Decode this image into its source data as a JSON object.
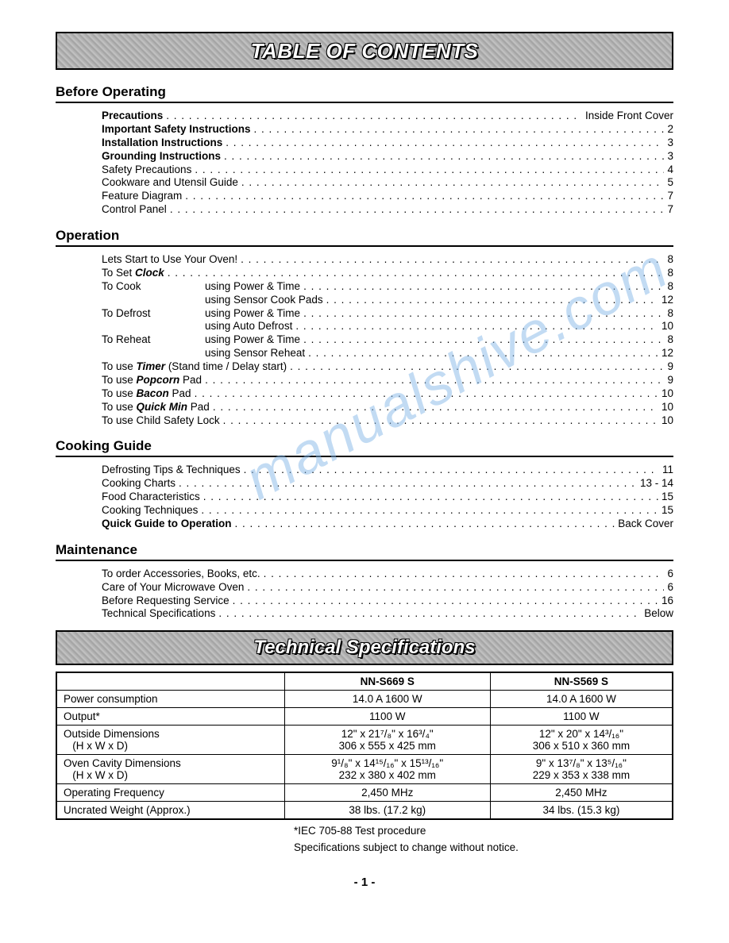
{
  "banners": {
    "toc": "TABLE OF CONTENTS",
    "spec": "Technical Specifications"
  },
  "watermark": "manualshive.com",
  "sections": {
    "before_operating": {
      "title": "Before Operating",
      "items": [
        {
          "label": "Precautions",
          "bold": true,
          "page": "Inside Front Cover"
        },
        {
          "label": "Important Safety Instructions",
          "bold": true,
          "page": "2"
        },
        {
          "label": "Installation Instructions",
          "bold": true,
          "page": "3"
        },
        {
          "label": "Grounding Instructions",
          "bold": true,
          "page": "3"
        },
        {
          "label": "Safety Precautions",
          "bold": false,
          "page": "4"
        },
        {
          "label": "Cookware and Utensil Guide",
          "bold": false,
          "page": "5"
        },
        {
          "label": "Feature Diagram",
          "bold": false,
          "page": "7"
        },
        {
          "label": "Control Panel",
          "bold": false,
          "page": "7"
        }
      ]
    },
    "operation": {
      "title": "Operation",
      "items": [
        {
          "label": "Lets Start to Use Your Oven!",
          "page": "8"
        },
        {
          "label_pre": "To Set ",
          "label_em": "Clock",
          "page": "8"
        },
        {
          "lead": "To Cook",
          "sub": "using Power & Time",
          "page": "8"
        },
        {
          "lead": "",
          "sub": "using Sensor Cook Pads",
          "page": "12"
        },
        {
          "lead": "To Defrost",
          "sub": "using Power & Time",
          "page": "8"
        },
        {
          "lead": "",
          "sub_pre": "using ",
          "sub_em": "Auto Defrost",
          "page": "10"
        },
        {
          "lead": "To Reheat",
          "sub": "using Power & Time",
          "page": "8"
        },
        {
          "lead": "",
          "sub_pre": "using ",
          "sub_em": "Sensor Reheat",
          "page": "12"
        },
        {
          "label_pre": "To use ",
          "label_em": "Timer",
          "label_post": " (Stand time / Delay start)",
          "page": "9"
        },
        {
          "label_pre": "To use ",
          "label_em": "Popcorn",
          "label_post": " Pad",
          "page": "9"
        },
        {
          "label_pre": "To use ",
          "label_em": "Bacon",
          "label_post": " Pad",
          "page": "10"
        },
        {
          "label_pre": "To use ",
          "label_em": "Quick Min",
          "label_post": " Pad",
          "page": "10"
        },
        {
          "label": "To use Child Safety Lock",
          "page": "10"
        }
      ]
    },
    "cooking_guide": {
      "title": "Cooking Guide",
      "items": [
        {
          "label": "Defrosting Tips & Techniques",
          "page": "11"
        },
        {
          "label": "Cooking Charts",
          "page": "13 - 14"
        },
        {
          "label": "Food Characteristics",
          "page": "15"
        },
        {
          "label": "Cooking Techniques",
          "page": "15"
        },
        {
          "label": "Quick Guide to Operation",
          "bold": true,
          "page": "Back Cover"
        }
      ]
    },
    "maintenance": {
      "title": "Maintenance",
      "items": [
        {
          "label": "To order Accessories, Books, etc.",
          "page": "6"
        },
        {
          "label": "Care of Your Microwave Oven",
          "page": "6"
        },
        {
          "label": "Before Requesting Service",
          "page": "16"
        },
        {
          "label": "Technical Specifications",
          "page": "Below"
        }
      ]
    }
  },
  "spec_table": {
    "models": [
      "NN-S669 S",
      "NN-S569 S"
    ],
    "rows": [
      {
        "label": "Power consumption",
        "a": "14.0 A  1600 W",
        "b": "14.0 A  1600 W"
      },
      {
        "label": "Output*",
        "a": "1100 W",
        "b": "1100 W"
      },
      {
        "label": "Outside Dimensions",
        "label2": "(H x W x D)",
        "a": "12\" x 21⁷/₈\" x 16³/₄\"",
        "a2": "306 x 555 x 425 mm",
        "b": "12\" x 20\" x 14³/₁₆\"",
        "b2": "306 x 510 x 360 mm"
      },
      {
        "label": "Oven Cavity Dimensions",
        "label2": "(H x W x D)",
        "a": "9¹/₈\" x 14¹⁵/₁₆\" x 15¹³/₁₆\"",
        "a2": "232 x 380 x 402 mm",
        "b": "9\" x 13⁷/₈\" x 13⁵/₁₆\"",
        "b2": "229 x 353 x 338 mm"
      },
      {
        "label": "Operating Frequency",
        "a": "2,450 MHz",
        "b": "2,450 MHz"
      },
      {
        "label": "Uncrated Weight (Approx.)",
        "a": "38 lbs. (17.2 kg)",
        "b": "34 lbs. (15.3 kg)"
      }
    ],
    "note1": "*IEC 705-88 Test procedure",
    "note2": "Specifications subject to change without notice."
  },
  "page_number": "- 1 -"
}
